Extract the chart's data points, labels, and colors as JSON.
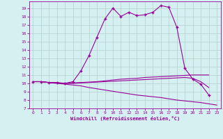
{
  "x": [
    0,
    1,
    2,
    3,
    4,
    5,
    6,
    7,
    8,
    9,
    10,
    11,
    12,
    13,
    14,
    15,
    16,
    17,
    18,
    19,
    20,
    21,
    22,
    23
  ],
  "curve1": [
    10.2,
    10.2,
    10.1,
    10.1,
    10.0,
    10.2,
    11.5,
    13.3,
    15.5,
    17.7,
    19.0,
    18.0,
    18.5,
    18.1,
    18.2,
    18.5,
    19.3,
    19.1,
    16.7,
    11.8,
    10.5,
    9.9,
    8.6,
    null
  ],
  "curve2": [
    10.2,
    10.2,
    10.1,
    10.0,
    9.9,
    9.8,
    9.7,
    9.5,
    9.35,
    9.2,
    9.05,
    8.9,
    8.75,
    8.6,
    8.5,
    8.4,
    8.3,
    8.15,
    8.0,
    7.9,
    7.8,
    7.7,
    7.55,
    7.4
  ],
  "curve3": [
    10.2,
    10.2,
    10.1,
    10.05,
    10.0,
    10.05,
    10.1,
    10.15,
    10.2,
    10.3,
    10.4,
    10.5,
    10.55,
    10.6,
    10.7,
    10.75,
    10.8,
    10.85,
    10.9,
    10.95,
    11.0,
    11.0,
    11.0,
    null
  ],
  "curve4": [
    10.2,
    10.2,
    10.1,
    10.05,
    10.0,
    10.0,
    10.05,
    10.1,
    10.15,
    10.2,
    10.25,
    10.3,
    10.35,
    10.4,
    10.45,
    10.5,
    10.55,
    10.6,
    10.65,
    10.7,
    10.6,
    10.2,
    9.5,
    null
  ],
  "color": "#990099",
  "bg_color": "#d4f0f0",
  "grid_color": "#b0c8c8",
  "xlabel": "Windchill (Refroidissement éolien,°C)",
  "xlim": [
    -0.5,
    23.5
  ],
  "ylim": [
    7,
    19.8
  ],
  "xticks": [
    0,
    1,
    2,
    3,
    4,
    5,
    6,
    7,
    8,
    9,
    10,
    11,
    12,
    13,
    14,
    15,
    16,
    17,
    18,
    19,
    20,
    21,
    22,
    23
  ],
  "yticks": [
    7,
    8,
    9,
    10,
    11,
    12,
    13,
    14,
    15,
    16,
    17,
    18,
    19
  ]
}
